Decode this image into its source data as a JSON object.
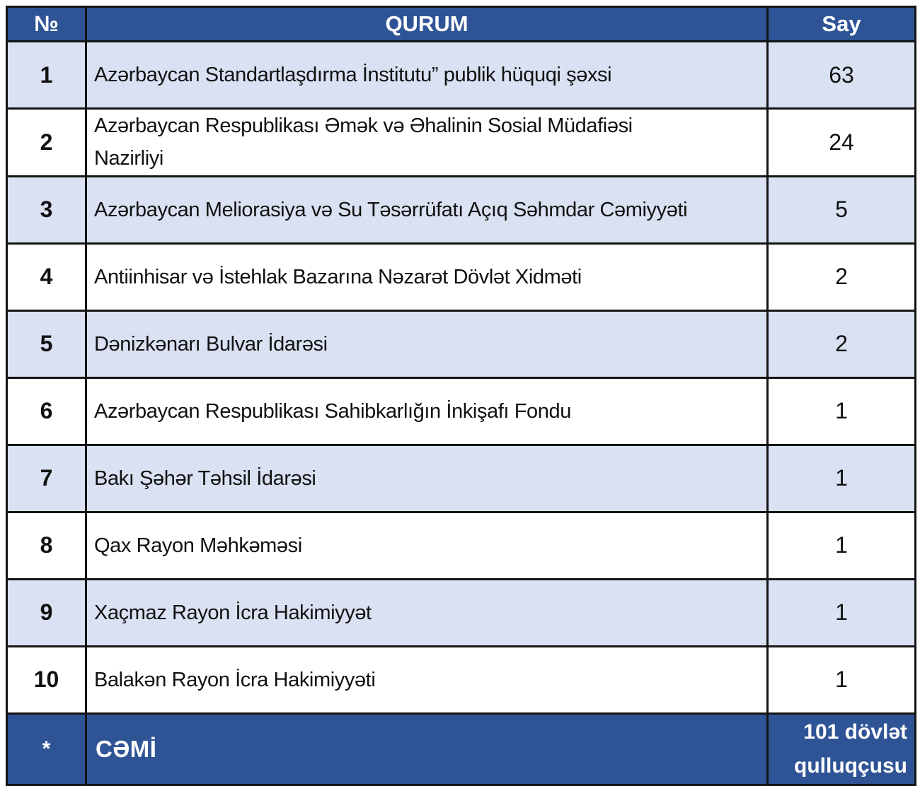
{
  "colors": {
    "header_bg": "#2F5496",
    "band_row_bg": "#D9E1F2",
    "plain_row_bg": "#FFFFFF",
    "border": "#141414",
    "header_text": "#FFFFFF",
    "body_text": "#111111"
  },
  "table": {
    "columns": {
      "num": "№",
      "qurum": "QURUM",
      "say": "Say"
    },
    "rows": [
      {
        "num": "1",
        "qurum": "Azərbaycan Standartlaşdırma İnstitutu” publik hüquqi şəxsi",
        "say": "63"
      },
      {
        "num": "2",
        "qurum": "Azərbaycan Respublikası Əmək və Əhalinin Sosial Müdafiəsi\nNazirliyi",
        "say": "24"
      },
      {
        "num": "3",
        "qurum": "Azərbaycan Meliorasiya və Su Təsərrüfatı Açıq Səhmdar Cəmiyyəti",
        "say": "5"
      },
      {
        "num": "4",
        "qurum": "Antiinhisar və İstehlak Bazarına Nəzarət Dövlət Xidməti",
        "say": "2"
      },
      {
        "num": "5",
        "qurum": "Dənizkənarı Bulvar İdarəsi",
        "say": "2"
      },
      {
        "num": "6",
        "qurum": "Azərbaycan Respublikası Sahibkarlığın İnkişafı Fondu",
        "say": "1"
      },
      {
        "num": "7",
        "qurum": "Bakı Şəhər Təhsil İdarəsi",
        "say": "1"
      },
      {
        "num": "8",
        "qurum": "Qax Rayon Məhkəməsi",
        "say": "1"
      },
      {
        "num": "9",
        "qurum": "Xaçmaz Rayon İcra Hakimiyyət",
        "say": "1"
      },
      {
        "num": "10",
        "qurum": "Balakən Rayon İcra Hakimiyyəti",
        "say": "1"
      }
    ],
    "footer": {
      "num": "*",
      "label": "CƏMİ",
      "say": "101 dövlət\nqulluqçusu"
    }
  }
}
